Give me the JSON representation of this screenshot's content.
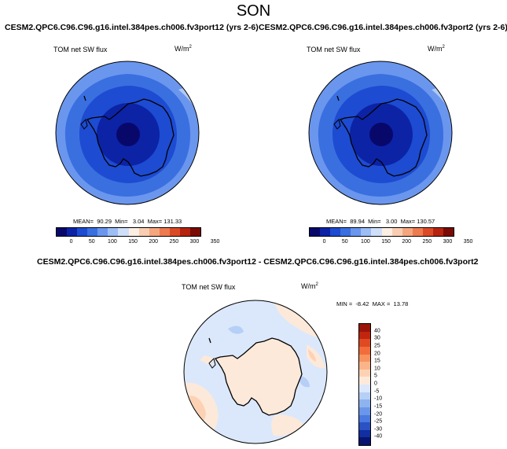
{
  "title": "SON",
  "panels": [
    {
      "title": "CESM2.QPC6.C96.C96.g16.intel.384pes.ch006.fv3port12 (yrs 2-6)",
      "variable": "TOM net SW flux",
      "units": "W/m",
      "units_sup": "2",
      "stats": "MEAN=  90.29  Min=   3.04  Max= 131.33"
    },
    {
      "title": "CESM2.QPC6.C96.C96.g16.intel.384pes.ch006.fv3port2 (yrs 2-6)",
      "variable": "TOM net SW flux",
      "units": "W/m",
      "units_sup": "2",
      "stats": "MEAN=  89.94  Min=   3.00  Max= 130.57"
    }
  ],
  "diff_panel": {
    "title": "CESM2.QPC6.C96.C96.g16.intel.384pes.ch006.fv3port12 - CESM2.QPC6.C96.C96.g16.intel.384pes.ch006.fv3port2",
    "variable": "TOM net SW flux",
    "units": "W/m",
    "units_sup": "2",
    "minmax": "MIN =  -8.42  MAX =  13.78"
  },
  "colorbar_main": {
    "ticks": [
      "0",
      "50",
      "100",
      "150",
      "200",
      "250",
      "300",
      "350"
    ],
    "colors": [
      "#08086b",
      "#0c23a6",
      "#1d4bd1",
      "#3a6fe0",
      "#6a96ee",
      "#9dbdf5",
      "#cfdffa",
      "#fdeee4",
      "#f9cdb1",
      "#f5a67e",
      "#ee7a50",
      "#db4a26",
      "#b52410",
      "#7a0a04"
    ]
  },
  "colorbar_diff": {
    "ticks": [
      "40",
      "30",
      "25",
      "20",
      "15",
      "10",
      "5",
      "0",
      "-5",
      "-10",
      "-15",
      "-20",
      "-25",
      "-30",
      "-40"
    ],
    "colors": [
      "#99150a",
      "#c12510",
      "#e04a22",
      "#f26d3c",
      "#f8935f",
      "#fbb48a",
      "#fdd2b4",
      "#fde9da",
      "#dbe8fb",
      "#b6cff6",
      "#8fb3ef",
      "#6b97ea",
      "#4a79e0",
      "#2b52c4",
      "#122ea0",
      "#071570"
    ]
  }
}
